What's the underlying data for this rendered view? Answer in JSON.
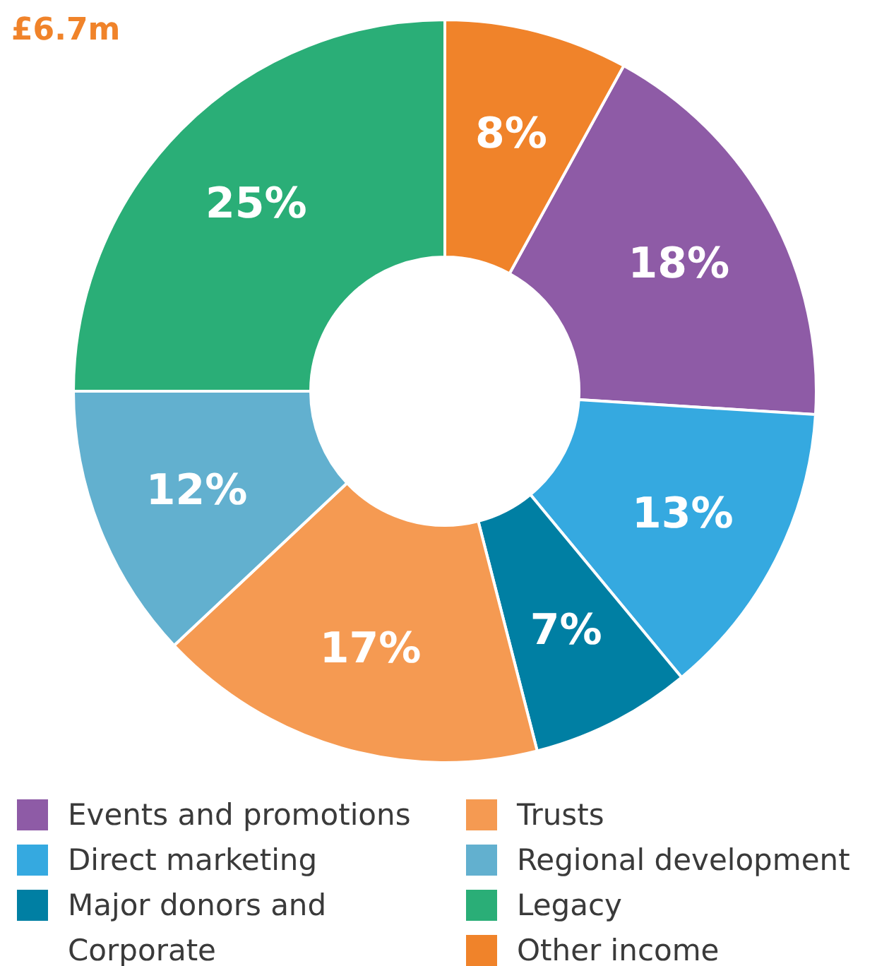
{
  "chart_data": {
    "type": "donut",
    "title": "£6.7m",
    "categories": [
      "Events and promotions",
      "Direct marketing",
      "Major donors and Corporate",
      "Trusts",
      "Regional development",
      "Legacy",
      "Other income"
    ],
    "values": [
      18,
      13,
      7,
      17,
      12,
      25,
      8
    ],
    "colors": [
      "#8e5ba6",
      "#35a9e0",
      "#007fa3",
      "#f59a52",
      "#62b0cf",
      "#2aae77",
      "#f0832a"
    ],
    "value_labels": [
      "18%",
      "13%",
      "7%",
      "17%",
      "12%",
      "25%",
      "8%"
    ],
    "legend": "bottom"
  }
}
